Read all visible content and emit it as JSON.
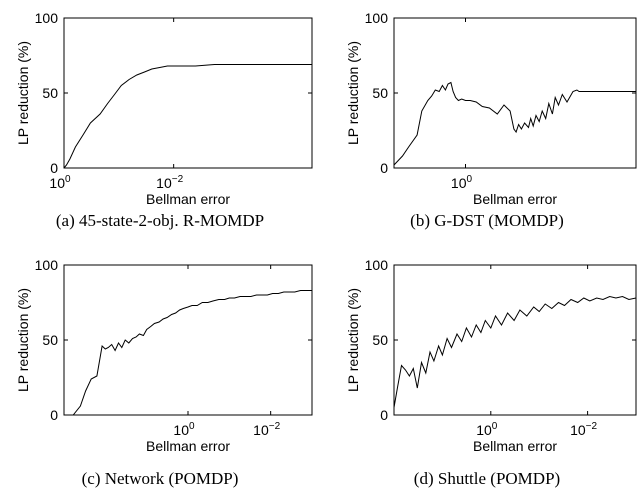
{
  "chart_data": [
    {
      "type": "line",
      "caption": "(a) 45-state-2-obj. R-MOMDP",
      "xlabel": "Bellman error",
      "ylabel": "LP reduction (%)",
      "x_scale": "log-reversed",
      "xlim": [
        1.0,
        3e-05
      ],
      "ylim": [
        0,
        100
      ],
      "x_ticks": [
        {
          "value": 1.0,
          "base": "10",
          "exp": "0"
        },
        {
          "value": 0.01,
          "base": "10",
          "exp": "−2"
        }
      ],
      "y_ticks": [
        "0",
        "50",
        "100"
      ],
      "grid": false,
      "series": [
        {
          "x": [
            1.0,
            0.9,
            0.78,
            0.62,
            0.45,
            0.33,
            0.22,
            0.16,
            0.12,
            0.09,
            0.065,
            0.047,
            0.034,
            0.025,
            0.018,
            0.013,
            0.008,
            0.004,
            0.0018,
            0.0009,
            0.00045,
            0.0002,
            0.0001,
            3e-05
          ],
          "y": [
            0,
            2,
            6,
            14,
            22,
            30,
            36,
            43,
            49,
            55,
            59,
            62,
            64,
            66,
            67,
            68,
            68,
            68,
            69,
            69,
            69,
            69,
            69,
            69
          ]
        }
      ]
    },
    {
      "type": "line",
      "caption": "(b) G-DST (MOMDP)",
      "xlabel": "Bellman error",
      "ylabel": "LP reduction (%)",
      "x_scale": "log-reversed",
      "xlim": [
        30,
        0.0003
      ],
      "ylim": [
        0,
        100
      ],
      "x_ticks": [
        {
          "value": 1.0,
          "base": "10",
          "exp": "0"
        }
      ],
      "y_ticks": [
        "0",
        "50",
        "100"
      ],
      "grid": false,
      "series": [
        {
          "x": [
            30,
            20,
            15,
            10,
            8,
            6,
            5,
            4.2,
            3.5,
            3.0,
            2.6,
            2.3,
            2.0,
            1.8,
            1.6,
            1.4,
            1.2,
            1.0,
            0.8,
            0.6,
            0.45,
            0.32,
            0.22,
            0.16,
            0.12,
            0.1,
            0.09,
            0.08,
            0.07,
            0.06,
            0.05,
            0.045,
            0.04,
            0.035,
            0.03,
            0.026,
            0.022,
            0.019,
            0.016,
            0.014,
            0.012,
            0.01,
            0.008,
            0.006,
            0.005,
            0.0045,
            0.004,
            0.0003
          ],
          "y": [
            2,
            8,
            14,
            22,
            38,
            45,
            48,
            52,
            51,
            55,
            52,
            56,
            57,
            51,
            47,
            45,
            46,
            45,
            45,
            44,
            41,
            40,
            36,
            42,
            38,
            26,
            24,
            29,
            26,
            30,
            27,
            33,
            28,
            35,
            31,
            38,
            33,
            43,
            36,
            47,
            42,
            49,
            44,
            51,
            52,
            51,
            51,
            51
          ]
        }
      ]
    },
    {
      "type": "line",
      "caption": "(c) Network (POMDP)",
      "xlabel": "Bellman error",
      "ylabel": "LP reduction (%)",
      "x_scale": "log-reversed",
      "xlim": [
        1000,
        0.001
      ],
      "ylim": [
        0,
        100
      ],
      "x_ticks": [
        {
          "value": 1.0,
          "base": "10",
          "exp": "0"
        },
        {
          "value": 0.01,
          "base": "10",
          "exp": "−2"
        }
      ],
      "y_ticks": [
        "0",
        "50",
        "100"
      ],
      "grid": false,
      "series": [
        {
          "x": [
            1000,
            600,
            400,
            300,
            220,
            160,
            120,
            100,
            85,
            70,
            58,
            48,
            40,
            33,
            27,
            22,
            18,
            15,
            12,
            10,
            8,
            6.5,
            5,
            4,
            3.2,
            2.5,
            2,
            1.6,
            1.3,
            1.0,
            0.8,
            0.6,
            0.45,
            0.33,
            0.25,
            0.18,
            0.13,
            0.1,
            0.075,
            0.055,
            0.04,
            0.03,
            0.022,
            0.016,
            0.012,
            0.009,
            0.0065,
            0.0048,
            0.0035,
            0.0026,
            0.0019,
            0.0014,
            0.001
          ],
          "y": [
            0,
            0,
            6,
            16,
            24,
            26,
            46,
            44,
            45,
            47,
            43,
            48,
            45,
            50,
            48,
            51,
            52,
            54,
            53,
            57,
            59,
            61,
            62,
            64,
            65,
            67,
            68,
            70,
            71,
            72,
            73,
            73,
            75,
            75,
            76,
            77,
            77,
            78,
            78,
            79,
            79,
            79,
            80,
            80,
            80,
            81,
            81,
            82,
            82,
            82,
            83,
            83,
            83
          ]
        }
      ]
    },
    {
      "type": "line",
      "caption": "(d) Shuttle (POMDP)",
      "xlabel": "Bellman error",
      "ylabel": "LP reduction (%)",
      "x_scale": "log-reversed",
      "xlim": [
        100,
        0.001
      ],
      "ylim": [
        0,
        100
      ],
      "x_ticks": [
        {
          "value": 1.0,
          "base": "10",
          "exp": "0"
        },
        {
          "value": 0.01,
          "base": "10",
          "exp": "−2"
        }
      ],
      "y_ticks": [
        "0",
        "50",
        "100"
      ],
      "grid": false,
      "series": [
        {
          "x": [
            100,
            85,
            70,
            58,
            48,
            40,
            33,
            27,
            22,
            18,
            15,
            12,
            10,
            8,
            6.5,
            5,
            4,
            3.2,
            2.5,
            2,
            1.6,
            1.3,
            1.0,
            0.8,
            0.6,
            0.45,
            0.33,
            0.25,
            0.18,
            0.13,
            0.1,
            0.075,
            0.055,
            0.04,
            0.03,
            0.022,
            0.016,
            0.012,
            0.009,
            0.0065,
            0.0048,
            0.0035,
            0.0026,
            0.0019,
            0.0014,
            0.001
          ],
          "y": [
            5,
            18,
            33,
            30,
            26,
            31,
            18,
            35,
            28,
            42,
            36,
            46,
            40,
            51,
            45,
            54,
            49,
            58,
            52,
            60,
            55,
            63,
            58,
            66,
            60,
            68,
            63,
            70,
            66,
            72,
            69,
            74,
            71,
            75,
            73,
            77,
            75,
            78,
            76,
            78,
            77,
            79,
            78,
            79,
            77,
            78
          ]
        }
      ]
    }
  ]
}
